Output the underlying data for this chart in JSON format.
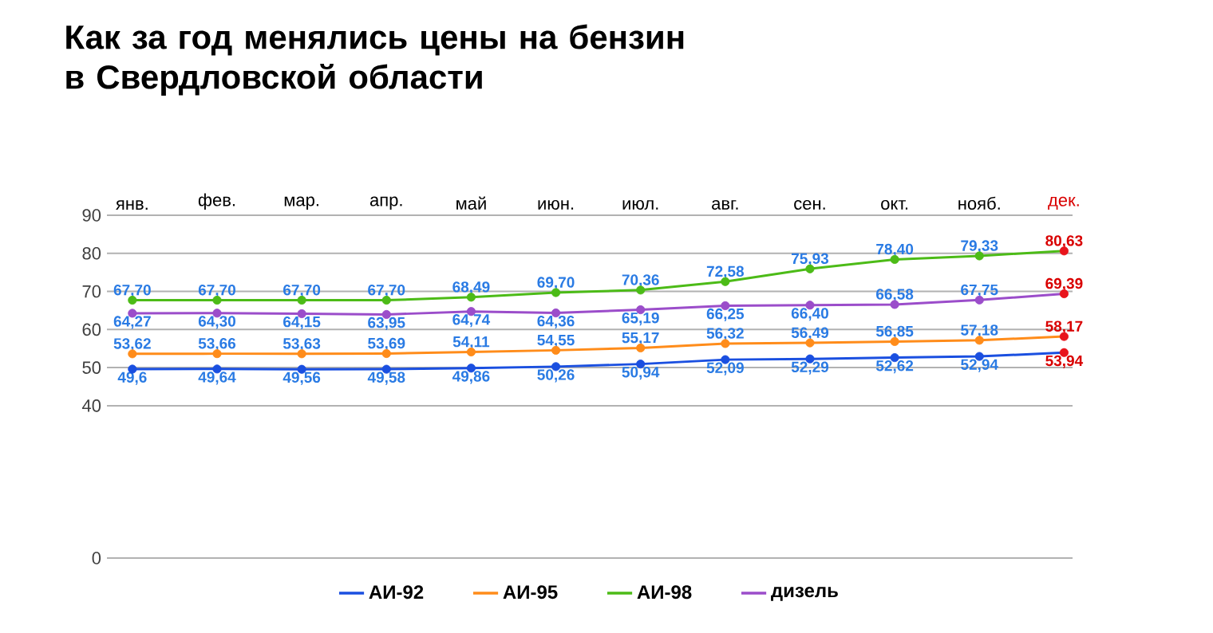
{
  "chart_data": {
    "type": "line",
    "title": "Как за год менялись цены на бензин в Свердловской области",
    "categories": [
      "янв.",
      "фев.",
      "мар.",
      "апр.",
      "май",
      "июн.",
      "июл.",
      "авг.",
      "сен.",
      "окт.",
      "нояб.",
      "дек."
    ],
    "ylim": [
      0,
      90
    ],
    "yticks": [
      0,
      40,
      50,
      60,
      70,
      80,
      90
    ],
    "grid": "y",
    "legend": "bottom",
    "marker": "circle",
    "line_style": "solid",
    "data_labels": true,
    "series": [
      {
        "name": "АИ-92",
        "color": "#1a4fe0",
        "colors": [
          "#1a4fe0",
          "#1a4fe0",
          "#1a4fe0",
          "#1a4fe0",
          "#1a4fe0",
          "#1a4fe0",
          "#1a4fe0",
          "#1a4fe0",
          "#1a4fe0",
          "#1a4fe0",
          "#1a4fe0",
          "#e8141c"
        ],
        "values": [
          49.6,
          49.64,
          49.56,
          49.58,
          49.86,
          50.26,
          50.94,
          52.09,
          52.29,
          52.62,
          52.94,
          53.94
        ],
        "value_labels": [
          "49,6",
          "49,64",
          "49,56",
          "49,58",
          "49,86",
          "50,26",
          "50,94",
          "52,09",
          "52,29",
          "52,62",
          "52,94",
          "53,94"
        ]
      },
      {
        "name": "АИ-95",
        "color": "#ff8c1a",
        "colors": [
          "#ff8c1a",
          "#ff8c1a",
          "#ff8c1a",
          "#ff8c1a",
          "#ff8c1a",
          "#ff8c1a",
          "#ff8c1a",
          "#ff8c1a",
          "#ff8c1a",
          "#ff8c1a",
          "#ff8c1a",
          "#e8141c"
        ],
        "values": [
          53.62,
          53.66,
          53.63,
          53.69,
          54.11,
          54.55,
          55.17,
          56.32,
          56.49,
          56.85,
          57.18,
          58.17
        ],
        "value_labels": [
          "53,62",
          "53,66",
          "53,63",
          "53,69",
          "54,11",
          "54,55",
          "55,17",
          "56,32",
          "56,49",
          "56,85",
          "57,18",
          "58,17"
        ]
      },
      {
        "name": "АИ-98",
        "color": "#4cbb17",
        "colors": [
          "#4cbb17",
          "#4cbb17",
          "#4cbb17",
          "#4cbb17",
          "#4cbb17",
          "#4cbb17",
          "#4cbb17",
          "#4cbb17",
          "#4cbb17",
          "#4cbb17",
          "#4cbb17",
          "#e8141c"
        ],
        "values": [
          67.7,
          67.7,
          67.7,
          67.7,
          68.49,
          69.7,
          70.36,
          72.58,
          75.93,
          78.4,
          79.33,
          80.63
        ],
        "value_labels": [
          "67,70",
          "67,70",
          "67,70",
          "67,70",
          "68,49",
          "69,70",
          "70,36",
          "72,58",
          "75,93",
          "78,40",
          "79,33",
          "80,63"
        ]
      },
      {
        "name": "дизель",
        "color": "#9b4dca",
        "colors": [
          "#9b4dca",
          "#9b4dca",
          "#9b4dca",
          "#9b4dca",
          "#9b4dca",
          "#9b4dca",
          "#9b4dca",
          "#9b4dca",
          "#9b4dca",
          "#9b4dca",
          "#9b4dca",
          "#e8141c"
        ],
        "values": [
          64.27,
          64.3,
          64.15,
          63.95,
          64.74,
          64.36,
          65.19,
          66.25,
          66.4,
          66.58,
          67.75,
          69.39
        ],
        "value_labels": [
          "64,27",
          "64,30",
          "64,15",
          "63,95",
          "64,74",
          "64,36",
          "65,19",
          "66,25",
          "66,40",
          "66,58",
          "67,75",
          "69,39"
        ]
      }
    ]
  }
}
